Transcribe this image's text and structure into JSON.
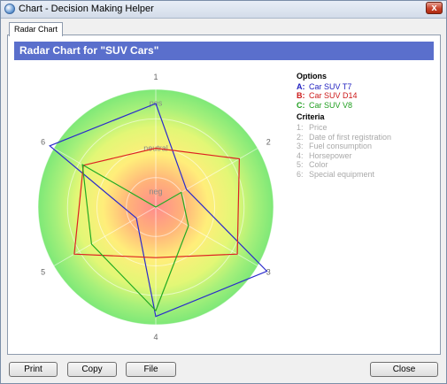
{
  "window": {
    "title": "Chart - Decision Making Helper",
    "close_label": "x"
  },
  "tab": {
    "label": "Radar Chart"
  },
  "banner": {
    "title": "Radar Chart for  \"SUV Cars\""
  },
  "chart_data": {
    "type": "radar",
    "axes": [
      "1",
      "2",
      "3",
      "4",
      "5",
      "6"
    ],
    "rings": [
      "pos",
      "neutral",
      "neg"
    ],
    "max": 1,
    "series": [
      {
        "name": "A:  Car SUV T7",
        "color": "#2a2acc",
        "values": [
          0.88,
          0.3,
          1.09,
          0.93,
          0.19,
          1.04
        ]
      },
      {
        "name": "B:  Car SUV D14",
        "color": "#dd2222",
        "values": [
          0.5,
          0.82,
          0.8,
          0.43,
          0.8,
          0.71
        ]
      },
      {
        "name": "C:  Car SUV V8",
        "color": "#22aa22",
        "values": [
          0.0,
          0.25,
          0.32,
          0.88,
          0.63,
          0.72
        ]
      }
    ],
    "legend": "right"
  },
  "options": {
    "heading": "Options",
    "items": [
      {
        "letter": "A:",
        "label": "Car SUV T7",
        "color": "#1f1fbf"
      },
      {
        "letter": "B:",
        "label": "Car SUV D14",
        "color": "#cc1a1a"
      },
      {
        "letter": "C:",
        "label": "Car SUV V8",
        "color": "#1f9e1f"
      }
    ]
  },
  "criteria": {
    "heading": "Criteria",
    "items": [
      {
        "num": "1:",
        "label": "Price"
      },
      {
        "num": "2:",
        "label": "Date of first registration"
      },
      {
        "num": "3:",
        "label": "Fuel consumption"
      },
      {
        "num": "4:",
        "label": "Horsepower"
      },
      {
        "num": "5:",
        "label": "Color"
      },
      {
        "num": "6:",
        "label": "Special equipment"
      }
    ]
  },
  "buttons": {
    "print": "Print",
    "copy": "Copy",
    "file": "File",
    "close": "Close"
  }
}
